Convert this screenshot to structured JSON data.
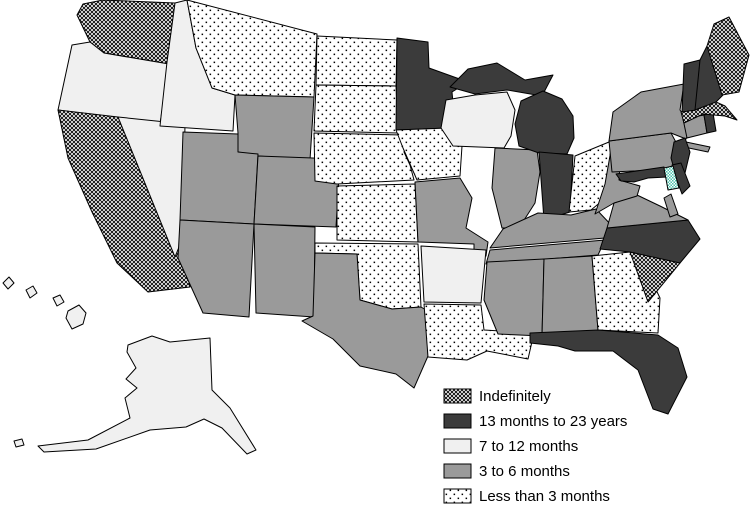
{
  "figure": {
    "type": "choropleth-map",
    "region": "United States",
    "background": "#ffffff",
    "border_color": "#000000"
  },
  "categories": {
    "indefinitely": {
      "label": "Indefinitely",
      "pattern": "crosshatch"
    },
    "m13_to_y23": {
      "label": "13 months to 23 years",
      "fill": "#3b3b3b"
    },
    "m7_to_12": {
      "label": "7 to 12 months",
      "fill": "#f0f0f0"
    },
    "m3_to_6": {
      "label": "3 to 6 months",
      "fill": "#9a9a9a"
    },
    "less_than_3": {
      "label": "Less than 3 months",
      "pattern": "dots"
    },
    "highlight_de": {
      "label": "Delaware (highlighted)",
      "pattern": "tealcheck",
      "color": "#4fc3ad"
    }
  },
  "legend": {
    "items": [
      {
        "label": "Indefinitely",
        "category": "indefinitely"
      },
      {
        "label": "13 months to 23 years",
        "category": "m13_to_y23"
      },
      {
        "label": "7 to 12 months",
        "category": "m7_to_12"
      },
      {
        "label": "3 to 6 months",
        "category": "m3_to_6"
      },
      {
        "label": "Less than 3 months",
        "category": "less_than_3"
      }
    ]
  },
  "states": [
    {
      "id": "WA",
      "name": "Washington",
      "category": "indefinitely"
    },
    {
      "id": "OR",
      "name": "Oregon",
      "category": "m7_to_12"
    },
    {
      "id": "CA",
      "name": "California",
      "category": "indefinitely"
    },
    {
      "id": "NV",
      "name": "Nevada",
      "category": "m7_to_12"
    },
    {
      "id": "ID",
      "name": "Idaho",
      "category": "m7_to_12"
    },
    {
      "id": "MT",
      "name": "Montana",
      "category": "less_than_3"
    },
    {
      "id": "WY",
      "name": "Wyoming",
      "category": "m3_to_6"
    },
    {
      "id": "UT",
      "name": "Utah",
      "category": "m3_to_6"
    },
    {
      "id": "CO",
      "name": "Colorado",
      "category": "m3_to_6"
    },
    {
      "id": "AZ",
      "name": "Arizona",
      "category": "m3_to_6"
    },
    {
      "id": "NM",
      "name": "New Mexico",
      "category": "m3_to_6"
    },
    {
      "id": "ND",
      "name": "North Dakota",
      "category": "less_than_3"
    },
    {
      "id": "SD",
      "name": "South Dakota",
      "category": "less_than_3"
    },
    {
      "id": "NE",
      "name": "Nebraska",
      "category": "less_than_3"
    },
    {
      "id": "KS",
      "name": "Kansas",
      "category": "less_than_3"
    },
    {
      "id": "OK",
      "name": "Oklahoma",
      "category": "less_than_3"
    },
    {
      "id": "TX",
      "name": "Texas",
      "category": "m3_to_6"
    },
    {
      "id": "MN",
      "name": "Minnesota",
      "category": "m13_to_y23"
    },
    {
      "id": "IA",
      "name": "Iowa",
      "category": "less_than_3"
    },
    {
      "id": "MO",
      "name": "Missouri",
      "category": "m3_to_6"
    },
    {
      "id": "AR",
      "name": "Arkansas",
      "category": "m7_to_12"
    },
    {
      "id": "LA",
      "name": "Louisiana",
      "category": "less_than_3"
    },
    {
      "id": "WI",
      "name": "Wisconsin",
      "category": "m7_to_12"
    },
    {
      "id": "IL",
      "name": "Illinois",
      "category": "m3_to_6"
    },
    {
      "id": "MI",
      "name": "Michigan",
      "category": "m13_to_y23"
    },
    {
      "id": "IN",
      "name": "Indiana",
      "category": "m13_to_y23"
    },
    {
      "id": "OH",
      "name": "Ohio",
      "category": "less_than_3"
    },
    {
      "id": "KY",
      "name": "Kentucky",
      "category": "m3_to_6"
    },
    {
      "id": "TN",
      "name": "Tennessee",
      "category": "m3_to_6"
    },
    {
      "id": "MS",
      "name": "Mississippi",
      "category": "m3_to_6"
    },
    {
      "id": "AL",
      "name": "Alabama",
      "category": "m3_to_6"
    },
    {
      "id": "GA",
      "name": "Georgia",
      "category": "less_than_3"
    },
    {
      "id": "SC",
      "name": "South Carolina",
      "category": "indefinitely"
    },
    {
      "id": "NC",
      "name": "North Carolina",
      "category": "m13_to_y23"
    },
    {
      "id": "FL",
      "name": "Florida",
      "category": "m13_to_y23"
    },
    {
      "id": "VA",
      "name": "Virginia",
      "category": "m3_to_6"
    },
    {
      "id": "WV",
      "name": "West Virginia",
      "category": "m3_to_6"
    },
    {
      "id": "PA",
      "name": "Pennsylvania",
      "category": "m3_to_6"
    },
    {
      "id": "NY",
      "name": "New York",
      "category": "m3_to_6"
    },
    {
      "id": "NJ",
      "name": "New Jersey",
      "category": "m13_to_y23"
    },
    {
      "id": "MD",
      "name": "Maryland",
      "category": "m13_to_y23"
    },
    {
      "id": "DE",
      "name": "Delaware",
      "category": "highlight_de"
    },
    {
      "id": "CT",
      "name": "Connecticut",
      "category": "m3_to_6"
    },
    {
      "id": "RI",
      "name": "Rhode Island",
      "category": "m13_to_y23"
    },
    {
      "id": "MA",
      "name": "Massachusetts",
      "category": "indefinitely"
    },
    {
      "id": "VT",
      "name": "Vermont",
      "category": "m13_to_y23"
    },
    {
      "id": "NH",
      "name": "New Hampshire",
      "category": "m13_to_y23"
    },
    {
      "id": "ME",
      "name": "Maine",
      "category": "indefinitely"
    },
    {
      "id": "AK",
      "name": "Alaska",
      "category": "m7_to_12"
    },
    {
      "id": "HI",
      "name": "Hawaii",
      "category": "m7_to_12"
    }
  ]
}
